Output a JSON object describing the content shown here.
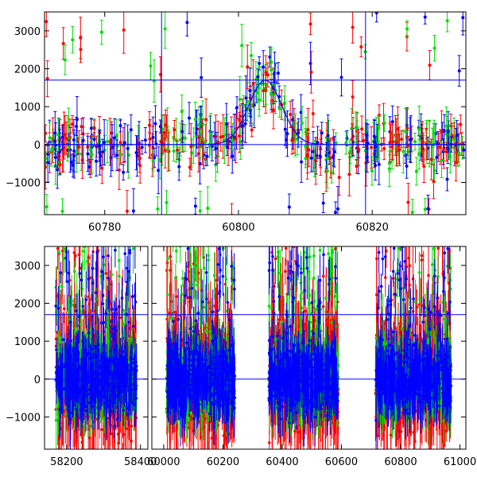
{
  "chart_data": [
    {
      "type": "scatter",
      "title": "",
      "xlabel": "",
      "ylabel": "",
      "xlim": [
        60771,
        60834
      ],
      "ylim": [
        -1850,
        3500
      ],
      "x_ticks": [
        {
          "value": 60780,
          "label": "60780"
        },
        {
          "value": 60800,
          "label": "60800"
        },
        {
          "value": 60820,
          "label": "60820"
        }
      ],
      "y_ticks": [
        {
          "value": 3000,
          "label": "3000"
        },
        {
          "value": 2000,
          "label": "2000"
        },
        {
          "value": 1000,
          "label": "1000"
        },
        {
          "value": 0,
          "label": "0"
        },
        {
          "value": -1000,
          "label": "−1000"
        }
      ],
      "hlines": [
        {
          "y": 1700,
          "color": "#0000ff"
        },
        {
          "y": 0,
          "color": "#0000ff"
        }
      ],
      "vlines": [
        {
          "x": 60788.5,
          "color": "#0000ff"
        },
        {
          "x": 60819.0,
          "color": "#0000ff"
        }
      ],
      "model_bump": {
        "center": 60804,
        "width": 3.5,
        "amplitude": 1700,
        "color": "#0000ff"
      },
      "series": [
        {
          "color": "#ff0000"
        },
        {
          "color": "#00dd00"
        },
        {
          "color": "#0000ff"
        }
      ],
      "grid": false,
      "legend": "none"
    },
    {
      "type": "scatter",
      "title": "",
      "xlabel": "",
      "ylabel": "",
      "broken_x": true,
      "segments": [
        {
          "xlim": [
            58140,
            58420
          ],
          "x_ticks": [
            {
              "value": 58200,
              "label": "58200"
            },
            {
              "value": 58400,
              "label": "58400"
            }
          ]
        },
        {
          "xlim": [
            59960,
            61020
          ],
          "x_ticks": [
            {
              "value": 60000,
              "label": "60000"
            },
            {
              "value": 60200,
              "label": "60200"
            },
            {
              "value": 60400,
              "label": "60400"
            },
            {
              "value": 60600,
              "label": "60600"
            },
            {
              "value": 60800,
              "label": "60800"
            },
            {
              "value": 61000,
              "label": "61000"
            }
          ]
        }
      ],
      "ylim": [
        -1850,
        3500
      ],
      "y_ticks": [
        {
          "value": 3000,
          "label": "3000"
        },
        {
          "value": 2000,
          "label": "2000"
        },
        {
          "value": 1000,
          "label": "1000"
        },
        {
          "value": 0,
          "label": "0"
        },
        {
          "value": -1000,
          "label": "−1000"
        }
      ],
      "hlines": [
        {
          "y": 1700,
          "color": "#0000ff"
        },
        {
          "y": 0,
          "color": "#0000ff"
        }
      ],
      "data_clusters": [
        {
          "x_start": 58170,
          "x_end": 58390
        },
        {
          "x_start": 60010,
          "x_end": 60240
        },
        {
          "x_start": 60355,
          "x_end": 60590
        },
        {
          "x_start": 60715,
          "x_end": 60970
        }
      ],
      "series": [
        {
          "color": "#ff0000"
        },
        {
          "color": "#00dd00"
        },
        {
          "color": "#0000ff"
        }
      ],
      "grid": false,
      "legend": "none"
    }
  ]
}
